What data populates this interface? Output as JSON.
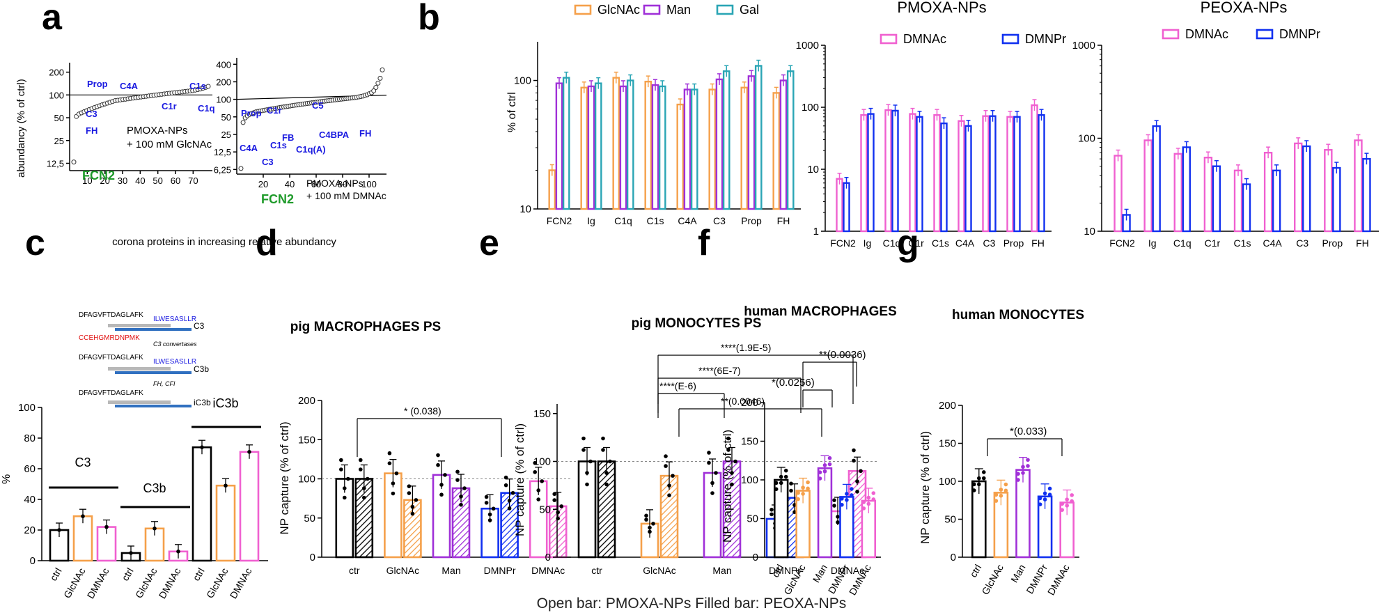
{
  "colors": {
    "black": "#000000",
    "orange": "#F5A04A",
    "purple": "#A030D8",
    "teal": "#2AA5B5",
    "pink": "#F060D0",
    "blue": "#1030F0",
    "green": "#1E9A2A",
    "label_blue": "#1A1AE0",
    "gray": "#707070"
  },
  "footer": "Open bar: PMOXA-NPs Filled bar: PEOXA-NPs",
  "chart_data": [
    {
      "panel": "a",
      "type": "scatter",
      "sub": [
        {
          "ylabel": "abundancy (% of ctrl)",
          "ticks": [
            "200",
            "100",
            "50",
            "25",
            "12,5"
          ],
          "xticks": [
            "10",
            "20",
            "30",
            "40",
            "50",
            "60",
            "70"
          ],
          "text1": "PMOXA-NPs",
          "text2": "+ 100 mM GlcNAc",
          "labels": [
            "Prop",
            "C4A",
            "C1s",
            "C3",
            "C1r",
            "C1q",
            "FH",
            "FCN2"
          ],
          "values": [
            13,
            52,
            56,
            58,
            60,
            62,
            64,
            66,
            68,
            70,
            72,
            74,
            76,
            78,
            80,
            82,
            84,
            85,
            86,
            87,
            88,
            89,
            90,
            91,
            92,
            93,
            94,
            95,
            96,
            97,
            98,
            99,
            100,
            101,
            102,
            103,
            104,
            105,
            106,
            107,
            108,
            109,
            110,
            111,
            112,
            113,
            114,
            116,
            118,
            120,
            123,
            126,
            130
          ]
        },
        {
          "ticks": [
            "400",
            "200",
            "100",
            "50",
            "25",
            "12,5",
            "6,25"
          ],
          "xticks": [
            "20",
            "40",
            "60",
            "80",
            "100"
          ],
          "text1": "PMOXA-NPs",
          "text2": "+ 100 mM DMNAc",
          "labels": [
            "C5",
            "Prop",
            "C1r",
            "C4A",
            "C1s",
            "FB",
            "C1q(A)",
            "C4BPA",
            "FH",
            "C3",
            "FCN2"
          ],
          "values": [
            6.5,
            40,
            48,
            52,
            55,
            57,
            59,
            61,
            62,
            63,
            64,
            65,
            66,
            67,
            68,
            69,
            70,
            71,
            72,
            73,
            74,
            75,
            76,
            77,
            78,
            79,
            80,
            81,
            82,
            83,
            84,
            85,
            86,
            87,
            88,
            89,
            90,
            91,
            92,
            93,
            94,
            95,
            96,
            97,
            98,
            99,
            100,
            101,
            102,
            103,
            104,
            105,
            106,
            107,
            108,
            110,
            112,
            114,
            117,
            120,
            125,
            130,
            140,
            160,
            190,
            230,
            320
          ]
        }
      ],
      "xlabel": "corona proteins in increasing relative abundancy"
    },
    {
      "panel": "b",
      "type": "bar",
      "ylabel": "% of ctrl",
      "sub": [
        {
          "title": "",
          "legend": [
            "GlcNAc",
            "Man",
            "Gal"
          ],
          "yticks": [
            "10",
            "100"
          ],
          "categories": [
            "FCN2",
            "Ig",
            "C1q",
            "C1s",
            "C4A",
            "C3",
            "Prop",
            "FH"
          ],
          "series": [
            {
              "name": "GlcNAc",
              "values": [
                20,
                88,
                105,
                98,
                65,
                85,
                88,
                80
              ]
            },
            {
              "name": "Man",
              "values": [
                95,
                90,
                90,
                92,
                85,
                102,
                108,
                100
              ]
            },
            {
              "name": "Gal",
              "values": [
                105,
                95,
                100,
                90,
                85,
                118,
                130,
                118
              ]
            }
          ]
        },
        {
          "title": "PMOXA-NPs",
          "legend": [
            "DMNAc",
            "DMNPr"
          ],
          "yticks": [
            "1",
            "10",
            "100",
            "1000"
          ],
          "categories": [
            "FCN2",
            "Ig",
            "C1q",
            "C1r",
            "C1s",
            "C4A",
            "C3",
            "Prop",
            "FH"
          ],
          "series": [
            {
              "name": "DMNAc",
              "values": [
                7,
                75,
                90,
                78,
                75,
                60,
                72,
                70,
                108
              ]
            },
            {
              "name": "DMNPr",
              "values": [
                6,
                78,
                88,
                70,
                55,
                50,
                72,
                70,
                75
              ]
            }
          ]
        },
        {
          "title": "PEOXA-NPs",
          "legend": [
            "DMNAc",
            "DMNPr"
          ],
          "yticks": [
            "10",
            "100",
            "1000"
          ],
          "categories": [
            "FCN2",
            "Ig",
            "C1q",
            "C1r",
            "C1s",
            "C4A",
            "C3",
            "Prop",
            "FH"
          ],
          "series": [
            {
              "name": "DMNAc",
              "values": [
                65,
                95,
                68,
                62,
                45,
                70,
                88,
                75,
                95
              ]
            },
            {
              "name": "DMNPr",
              "values": [
                15,
                135,
                80,
                50,
                32,
                45,
                82,
                48,
                60
              ]
            }
          ]
        }
      ]
    },
    {
      "panel": "c",
      "type": "bar",
      "ylabel": "%",
      "yticks": [
        "0",
        "20",
        "40",
        "60",
        "80",
        "100"
      ],
      "groups": [
        "C3",
        "C3b",
        "iC3b"
      ],
      "categories": [
        "ctrl",
        "GlcNAc",
        "DMNAc"
      ],
      "values": [
        [
          20,
          29,
          22
        ],
        [
          5,
          21,
          6
        ],
        [
          74,
          49,
          71
        ]
      ],
      "schematic": [
        "DFAGVFTDAGLAFK",
        "ILWESASLLR",
        "C3",
        "CCEHGMRDNPMK",
        "C3 convertases",
        "DFAGVFTDAGLAFK",
        "ILWESASLLR",
        "C3b",
        "FH, CFI",
        "DFAGVFTDAGLAFK",
        "iC3b"
      ]
    },
    {
      "panel": "d",
      "type": "bar",
      "title": "pig MACROPHAGES PS",
      "ylabel": "NP capture (% of ctrl)",
      "yticks": [
        "0",
        "50",
        "100",
        "150",
        "200"
      ],
      "categories": [
        "ctr",
        "GlcNAc",
        "Man",
        "DMNPr",
        "DMNAc"
      ],
      "open": [
        100,
        107,
        105,
        62,
        97
      ],
      "filled": [
        100,
        73,
        88,
        82,
        65
      ],
      "sig": [
        "* (0.038)"
      ]
    },
    {
      "panel": "e",
      "type": "bar",
      "title": "pig MONOCYTES PS",
      "ylabel": "NP capture (% of ctrl)",
      "yticks": [
        "0",
        "50",
        "100",
        "150"
      ],
      "categories": [
        "ctr",
        "GlcNAc",
        "Man",
        "DMNPr",
        "DMNAc"
      ],
      "open": [
        100,
        35,
        88,
        40,
        48
      ],
      "filled": [
        100,
        85,
        100,
        62,
        90
      ],
      "sig": [
        "****(1.9E-5)",
        "****(6E-7)",
        "****(E-6)",
        "**(0.0046)"
      ]
    },
    {
      "panel": "f",
      "type": "bar",
      "title": "human MACROPHAGES",
      "ylabel": "NP capture (% of ctrl)",
      "yticks": [
        "0",
        "50",
        "100",
        "150",
        "200"
      ],
      "categories": [
        "ctrl",
        "GlcNAc",
        "Man",
        "DMNPr",
        "DMNAc"
      ],
      "values": [
        100,
        86,
        115,
        78,
        73
      ],
      "sig": [
        "**(0.0036)",
        "*(0.0256)"
      ]
    },
    {
      "panel": "g",
      "type": "bar",
      "title": "human MONOCYTES",
      "ylabel": "NP capture (% of ctrl)",
      "yticks": [
        "0",
        "50",
        "100",
        "150",
        "200"
      ],
      "categories": [
        "ctrl",
        "GlcNAc",
        "Man",
        "DMNPr",
        "DMNAc"
      ],
      "values": [
        100,
        85,
        115,
        80,
        72
      ],
      "sig": [
        "*(0.033)"
      ]
    }
  ],
  "panel_letters": [
    "a",
    "b",
    "c",
    "d",
    "e",
    "f",
    "g"
  ]
}
